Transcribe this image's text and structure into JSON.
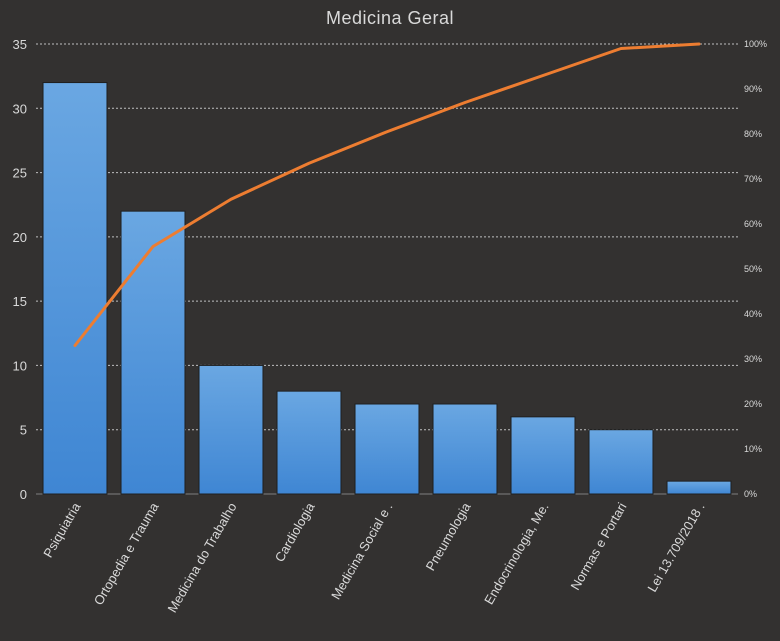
{
  "chart_data": {
    "type": "bar",
    "title": "Medicina Geral",
    "categories": [
      "Psiquiatria",
      "Ortopedia e Trauma",
      "Medicina do Trabalho",
      "Cardiologia",
      "Medicina Social e .",
      "Pneumologia",
      "Endocrinologia, Me.",
      "Normas e Portari",
      "Lei 13.709/2018 ."
    ],
    "series": [
      {
        "type": "bar",
        "values": [
          32,
          22,
          10,
          8,
          7,
          7,
          6,
          5,
          1
        ],
        "color": "#4a90d9"
      },
      {
        "type": "line",
        "axis": "right",
        "values": [
          33,
          55,
          65.5,
          73.5,
          80.5,
          87,
          93,
          99,
          100
        ],
        "color": "#ed7d31"
      }
    ],
    "ylim": [
      0,
      35
    ],
    "yticks": [
      "0",
      "5",
      "10",
      "15",
      "20",
      "25",
      "30",
      "35"
    ],
    "y2lim": [
      0,
      100
    ],
    "y2ticks": [
      "0%",
      "10%",
      "20%",
      "30%",
      "40%",
      "50%",
      "60%",
      "70%",
      "80%",
      "90%",
      "100%"
    ],
    "grid": true,
    "colors": {
      "background": "#333130",
      "text": "#d9d9d9",
      "grid": "#bfbfbf"
    }
  }
}
